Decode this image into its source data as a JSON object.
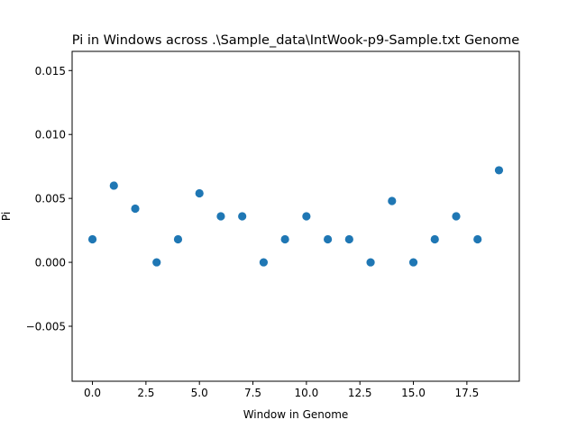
{
  "chart_data": {
    "type": "scatter",
    "title": "Pi in Windows across .\\Sample_data\\IntWook-p9-Sample.txt Genome",
    "xlabel": "Window in Genome",
    "ylabel": "Pi",
    "xlim": [
      -0.95,
      19.95
    ],
    "ylim": [
      -0.0093,
      0.0165
    ],
    "xticks": [
      0.0,
      2.5,
      5.0,
      7.5,
      10.0,
      12.5,
      15.0,
      17.5
    ],
    "xtick_labels": [
      "0.0",
      "2.5",
      "5.0",
      "7.5",
      "10.0",
      "12.5",
      "15.0",
      "17.5"
    ],
    "yticks": [
      -0.005,
      0.0,
      0.005,
      0.01,
      0.015
    ],
    "ytick_labels": [
      "−0.005",
      "0.000",
      "0.005",
      "0.010",
      "0.015"
    ],
    "grid": false,
    "marker_color": "#1f77b4",
    "series": [
      {
        "x": [
          0,
          1,
          2,
          3,
          4,
          5,
          6,
          7,
          8,
          9,
          10,
          11,
          12,
          13,
          14,
          15,
          16,
          17,
          18,
          19
        ],
        "values": [
          0.0018,
          0.006,
          0.0042,
          0.0,
          0.0018,
          0.0054,
          0.0036,
          0.0036,
          0.0,
          0.0018,
          0.0036,
          0.0018,
          0.0018,
          0.0,
          0.0048,
          0.0,
          0.0018,
          0.0036,
          0.0018,
          0.0072
        ]
      }
    ]
  }
}
